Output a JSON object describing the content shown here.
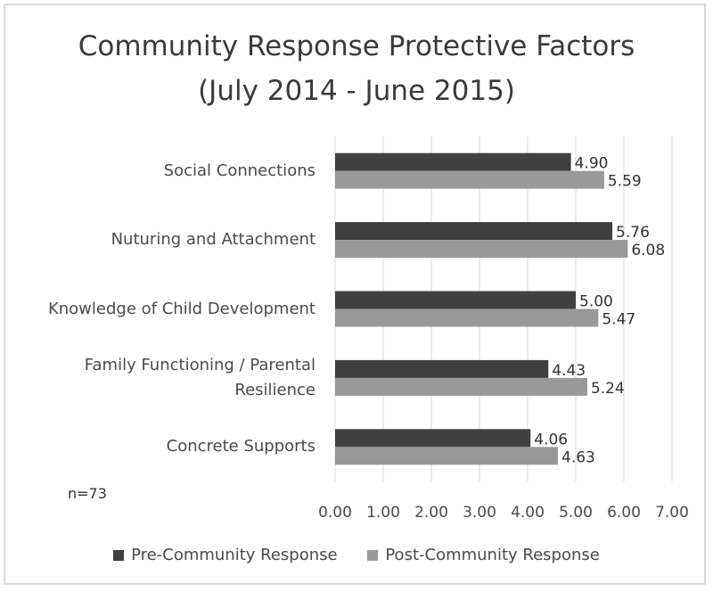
{
  "chart_data": {
    "type": "bar",
    "orientation": "horizontal",
    "title_line1": "Community Response Protective Factors",
    "title_line2": "(July 2014 - June 2015)",
    "categories": [
      "Social Connections",
      "Nuturing and Attachment",
      "Knowledge of Child Development",
      "Family Functioning / Parental Resilience",
      "Concrete Supports"
    ],
    "category_lines": [
      [
        "Social Connections"
      ],
      [
        "Nuturing and Attachment"
      ],
      [
        "Knowledge of Child Development"
      ],
      [
        "Family Functioning / Parental",
        "Resilience"
      ],
      [
        "Concrete Supports"
      ]
    ],
    "series": [
      {
        "name": "Pre-Community Response",
        "color": "#404040",
        "values": [
          4.9,
          5.76,
          5.0,
          4.43,
          4.06
        ],
        "labels": [
          "4.90",
          "5.76",
          "5.00",
          "4.43",
          "4.06"
        ]
      },
      {
        "name": "Post-Community Response",
        "color": "#999999",
        "values": [
          5.59,
          6.08,
          5.47,
          5.24,
          4.63
        ],
        "labels": [
          "5.59",
          "6.08",
          "5.47",
          "5.24",
          "4.63"
        ]
      }
    ],
    "xlim": [
      0,
      7
    ],
    "ticks": [
      0,
      1,
      2,
      3,
      4,
      5,
      6,
      7
    ],
    "tick_labels": [
      "0.00",
      "1.00",
      "2.00",
      "3.00",
      "4.00",
      "5.00",
      "6.00",
      "7.00"
    ],
    "grid": true,
    "legend_position": "bottom",
    "annotation": "n=73"
  }
}
